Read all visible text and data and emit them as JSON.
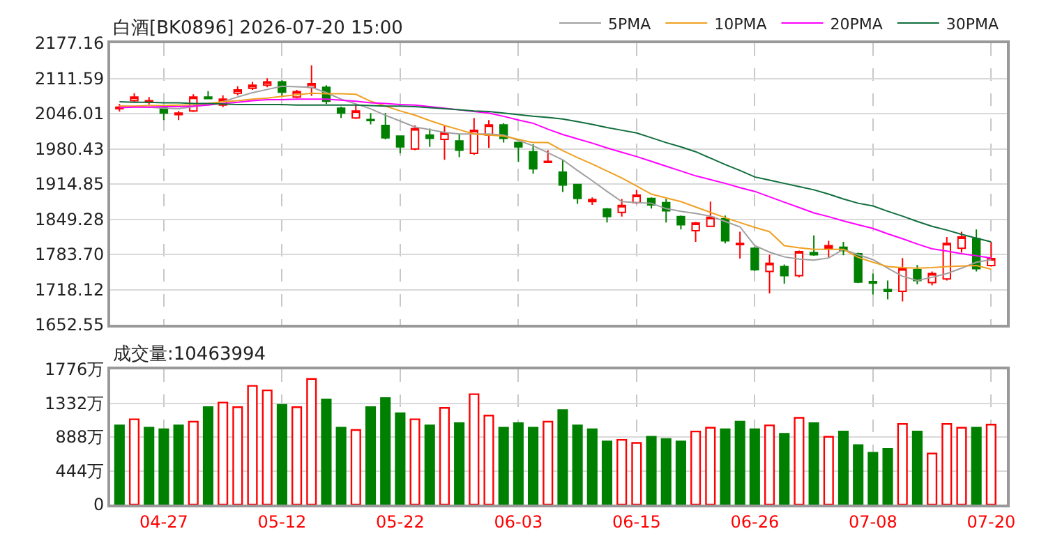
{
  "chart_data": [
    {
      "type": "candlestick",
      "title": "白酒[BK0896] 2026-07-20 15:00",
      "categories": [
        null,
        null,
        null,
        null,
        null,
        null,
        null,
        null,
        null,
        null,
        null,
        null,
        null,
        null,
        null,
        null,
        null,
        null,
        null,
        null,
        null,
        null,
        null,
        null,
        null,
        null,
        null,
        null,
        null,
        null,
        null,
        null,
        null,
        null,
        null,
        null,
        null,
        null,
        null,
        null,
        null,
        null,
        null,
        null,
        null,
        null,
        null,
        null,
        null,
        null,
        null,
        null,
        null,
        null,
        null,
        null,
        null,
        null,
        null,
        null
      ],
      "ohlc": [
        [
          2055,
          2064,
          2050,
          2058
        ],
        [
          2070,
          2084,
          2067,
          2077
        ],
        [
          2067,
          2077,
          2063,
          2070
        ],
        [
          2056,
          2061,
          2034,
          2047
        ],
        [
          2044,
          2051,
          2034,
          2047
        ],
        [
          2051,
          2082,
          2049,
          2077
        ],
        [
          2077,
          2088,
          2074,
          2074
        ],
        [
          2062,
          2080,
          2058,
          2073
        ],
        [
          2084,
          2097,
          2080,
          2090
        ],
        [
          2093,
          2105,
          2090,
          2099
        ],
        [
          2099,
          2112,
          2095,
          2105
        ],
        [
          2105,
          2108,
          2079,
          2086
        ],
        [
          2077,
          2090,
          2075,
          2087
        ],
        [
          2095,
          2136,
          2079,
          2102
        ],
        [
          2095,
          2099,
          2064,
          2069
        ],
        [
          2056,
          2059,
          2038,
          2047
        ],
        [
          2038,
          2064,
          2036,
          2051
        ],
        [
          2035,
          2047,
          2026,
          2033
        ],
        [
          2024,
          2047,
          1998,
          2001
        ],
        [
          2004,
          2004,
          1972,
          1984
        ],
        [
          1980,
          2024,
          1978,
          2018
        ],
        [
          2006,
          2018,
          1984,
          2000
        ],
        [
          1998,
          2025,
          1960,
          2010
        ],
        [
          1995,
          2008,
          1965,
          1978
        ],
        [
          1972,
          2038,
          1969,
          2015
        ],
        [
          2006,
          2034,
          1982,
          2025
        ],
        [
          2025,
          2028,
          1992,
          2000
        ],
        [
          1992,
          1992,
          1956,
          1984
        ],
        [
          1975,
          1989,
          1934,
          1943
        ],
        [
          1955,
          1978,
          1955,
          1957
        ],
        [
          1937,
          1960,
          1900,
          1913
        ],
        [
          1914,
          1914,
          1878,
          1888
        ],
        [
          1882,
          1890,
          1876,
          1886
        ],
        [
          1868,
          1870,
          1843,
          1854
        ],
        [
          1862,
          1887,
          1854,
          1875
        ],
        [
          1880,
          1904,
          1878,
          1894
        ],
        [
          1888,
          1890,
          1869,
          1876
        ],
        [
          1880,
          1887,
          1843,
          1865
        ],
        [
          1854,
          1856,
          1830,
          1839
        ],
        [
          1828,
          1844,
          1807,
          1842
        ],
        [
          1836,
          1882,
          1835,
          1853
        ],
        [
          1850,
          1856,
          1804,
          1809
        ],
        [
          1802,
          1826,
          1776,
          1804
        ],
        [
          1795,
          1797,
          1753,
          1755
        ],
        [
          1752,
          1783,
          1711,
          1767
        ],
        [
          1761,
          1765,
          1729,
          1744
        ],
        [
          1744,
          1791,
          1741,
          1789
        ],
        [
          1787,
          1819,
          1781,
          1783
        ],
        [
          1795,
          1809,
          1778,
          1800
        ],
        [
          1797,
          1807,
          1782,
          1791
        ],
        [
          1785,
          1787,
          1730,
          1732
        ],
        [
          1733,
          1748,
          1709,
          1730
        ],
        [
          1718,
          1735,
          1700,
          1715
        ],
        [
          1715,
          1777,
          1696,
          1757
        ],
        [
          1755,
          1764,
          1728,
          1735
        ],
        [
          1731,
          1752,
          1726,
          1748
        ],
        [
          1738,
          1816,
          1735,
          1804
        ],
        [
          1795,
          1826,
          1787,
          1816
        ],
        [
          1813,
          1830,
          1752,
          1757
        ],
        [
          1763,
          1807,
          1761,
          1776
        ]
      ],
      "colors": [
        "#ff0000",
        "#ff0000",
        "#ff0000",
        "#008000",
        "#ff0000",
        "#ff0000",
        "#008000",
        "#ff0000",
        "#ff0000",
        "#ff0000",
        "#ff0000",
        "#008000",
        "#ff0000",
        "#ff0000",
        "#008000",
        "#008000",
        "#ff0000",
        "#008000",
        "#008000",
        "#008000",
        "#ff0000",
        "#008000",
        "#ff0000",
        "#008000",
        "#ff0000",
        "#ff0000",
        "#008000",
        "#008000",
        "#008000",
        "#ff0000",
        "#008000",
        "#008000",
        "#ff0000",
        "#008000",
        "#ff0000",
        "#ff0000",
        "#008000",
        "#008000",
        "#008000",
        "#ff0000",
        "#ff0000",
        "#008000",
        "#ff0000",
        "#008000",
        "#ff0000",
        "#008000",
        "#ff0000",
        "#008000",
        "#ff0000",
        "#008000",
        "#008000",
        "#008000",
        "#008000",
        "#ff0000",
        "#008000",
        "#ff0000",
        "#ff0000",
        "#ff0000",
        "#008000",
        "#ff0000"
      ],
      "series": [
        {
          "type": "line",
          "name": "5PMA",
          "color": "#a0a0a0",
          "values": [
            2060,
            2059,
            2058,
            2056,
            2055,
            2059,
            2063,
            2068,
            2077,
            2085,
            2091,
            2097,
            2096,
            2095,
            2085,
            2073,
            2064,
            2055,
            2043,
            2032,
            2021,
            2016,
            2011,
            2008,
            2008,
            2008,
            2006,
            1996,
            1986,
            1973,
            1960,
            1940,
            1921,
            1901,
            1882,
            1880,
            1879,
            1869,
            1864,
            1860,
            1855,
            1845,
            1835,
            1800,
            1788,
            1779,
            1775,
            1773,
            1777,
            1793,
            1783,
            1774,
            1758,
            1743,
            1735,
            1741,
            1748,
            1758,
            1769,
            1774
          ]
        },
        {
          "type": "line",
          "name": "10PMA",
          "color": "#f0a020",
          "values": [
            2060,
            2060,
            2061,
            2061,
            2062,
            2062,
            2065,
            2068,
            2070,
            2073,
            2075,
            2078,
            2081,
            2084,
            2083,
            2083,
            2082,
            2069,
            2060,
            2051,
            2043,
            2033,
            2024,
            2016,
            2008,
            2006,
            2004,
            1998,
            1992,
            1992,
            1977,
            1964,
            1952,
            1939,
            1926,
            1911,
            1896,
            1889,
            1882,
            1872,
            1862,
            1852,
            1843,
            1834,
            1826,
            1800,
            1796,
            1793,
            1793,
            1793,
            1778,
            1769,
            1761,
            1759,
            1758,
            1759,
            1761,
            1762,
            1763,
            1756
          ]
        },
        {
          "type": "line",
          "name": "20PMA",
          "color": "#ff00ff",
          "values": [
            2057,
            2058,
            2058,
            2059,
            2059,
            2060,
            2062,
            2065,
            2067,
            2070,
            2072,
            2072,
            2073,
            2073,
            2073,
            2071,
            2069,
            2066,
            2065,
            2063,
            2062,
            2059,
            2056,
            2053,
            2050,
            2047,
            2041,
            2034,
            2028,
            2017,
            2007,
            1999,
            1991,
            1982,
            1974,
            1966,
            1957,
            1948,
            1939,
            1930,
            1923,
            1916,
            1908,
            1901,
            1891,
            1881,
            1871,
            1861,
            1854,
            1846,
            1839,
            1832,
            1822,
            1813,
            1803,
            1794,
            1790,
            1785,
            1781,
            1777
          ]
        },
        {
          "type": "line",
          "name": "30PMA",
          "color": "#0f6e3c",
          "values": [
            2068,
            2067,
            2067,
            2066,
            2066,
            2065,
            2065,
            2064,
            2063,
            2063,
            2063,
            2063,
            2062,
            2062,
            2062,
            2062,
            2062,
            2061,
            2060,
            2060,
            2059,
            2057,
            2055,
            2053,
            2051,
            2050,
            2047,
            2044,
            2041,
            2039,
            2036,
            2031,
            2026,
            2020,
            2015,
            2010,
            2001,
            1992,
            1984,
            1975,
            1963,
            1951,
            1940,
            1928,
            1922,
            1916,
            1910,
            1904,
            1896,
            1887,
            1879,
            1874,
            1864,
            1855,
            1845,
            1836,
            1829,
            1821,
            1814,
            1807
          ]
        }
      ],
      "ylim": [
        1652.55,
        2177.16
      ],
      "yticks": [
        1652.55,
        1718.12,
        {
          "value": 1783.7,
          "label": "1783.70"
        },
        1849.28,
        1914.85,
        1980.43,
        2046.01,
        2111.59,
        2177.16
      ],
      "grid": true,
      "legend": "top right",
      "tick_labels": "y"
    },
    {
      "type": "bar",
      "title": "成交量:10463994",
      "categories": [
        null,
        null,
        null,
        "04-27",
        null,
        null,
        null,
        null,
        null,
        null,
        null,
        "05-12",
        null,
        null,
        null,
        null,
        null,
        null,
        null,
        "05-22",
        null,
        null,
        null,
        null,
        null,
        null,
        null,
        "06-03",
        null,
        null,
        null,
        null,
        null,
        null,
        null,
        "06-15",
        null,
        null,
        null,
        null,
        null,
        null,
        null,
        "06-26",
        null,
        null,
        null,
        null,
        null,
        null,
        null,
        "07-08",
        null,
        null,
        null,
        null,
        null,
        null,
        null,
        "07-20"
      ],
      "values": [
        1040,
        1120,
        1010,
        990,
        1040,
        1090,
        1280,
        1340,
        1280,
        1560,
        1500,
        1310,
        1280,
        1650,
        1380,
        1010,
        980,
        1280,
        1400,
        1200,
        1120,
        1040,
        1270,
        1070,
        1450,
        1170,
        1010,
        1070,
        1010,
        1090,
        1240,
        1040,
        990,
        830,
        850,
        810,
        890,
        860,
        830,
        960,
        1010,
        990,
        1090,
        990,
        1040,
        930,
        1140,
        1070,
        890,
        960,
        780,
        680,
        730,
        1060,
        960,
        670,
        1060,
        1010,
        1010,
        1050
      ],
      "colors": [
        "#008000",
        "#ff0000",
        "#008000",
        "#008000",
        "#008000",
        "#ff0000",
        "#008000",
        "#ff0000",
        "#ff0000",
        "#ff0000",
        "#ff0000",
        "#008000",
        "#ff0000",
        "#ff0000",
        "#008000",
        "#008000",
        "#ff0000",
        "#008000",
        "#008000",
        "#008000",
        "#ff0000",
        "#008000",
        "#ff0000",
        "#008000",
        "#ff0000",
        "#ff0000",
        "#008000",
        "#008000",
        "#008000",
        "#ff0000",
        "#008000",
        "#008000",
        "#008000",
        "#008000",
        "#ff0000",
        "#ff0000",
        "#008000",
        "#008000",
        "#008000",
        "#ff0000",
        "#ff0000",
        "#008000",
        "#008000",
        "#008000",
        "#ff0000",
        "#008000",
        "#ff0000",
        "#008000",
        "#ff0000",
        "#008000",
        "#008000",
        "#008000",
        "#008000",
        "#ff0000",
        "#008000",
        "#ff0000",
        "#ff0000",
        "#ff0000",
        "#008000",
        "#ff0000"
      ],
      "ylim": [
        0,
        1776
      ],
      "yticks": [
        0,
        {
          "value": 444,
          "label": "444万"
        },
        {
          "value": 888,
          "label": "888万"
        },
        {
          "value": 1332,
          "label": "1332万"
        },
        {
          "value": 1776,
          "label": "1776万"
        }
      ],
      "grid": true
    }
  ]
}
